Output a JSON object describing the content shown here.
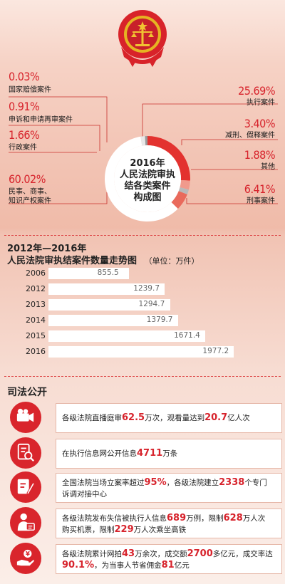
{
  "chart_data": [
    {
      "type": "pie",
      "title": "2016年人民法院审执结各类案件构成图",
      "title_lines": [
        "2016年",
        "人民法院审执",
        "结各类案件",
        "构成图"
      ],
      "slices": [
        {
          "label": "民事、商事、知识产权案件",
          "label_lines": [
            "民事、商事、",
            "知识产权案件"
          ],
          "value_label": "60.02%",
          "value": 60.02,
          "color": "#ffffff"
        },
        {
          "label": "执行案件",
          "label_lines": [
            "执行案件"
          ],
          "value_label": "25.69%",
          "value": 25.69,
          "color": "#e3322f"
        },
        {
          "label": "刑事案件",
          "label_lines": [
            "刑事案件"
          ],
          "value_label": "6.41%",
          "value": 6.41,
          "color": "#e96a5c"
        },
        {
          "label": "减刑、假释案件",
          "label_lines": [
            "减刑、假释案件"
          ],
          "value_label": "3.40%",
          "value": 3.4,
          "color": "#f09a8c"
        },
        {
          "label": "其他",
          "label_lines": [
            "其他"
          ],
          "value_label": "1.88%",
          "value": 1.88,
          "color": "#b9b9b9"
        },
        {
          "label": "行政案件",
          "label_lines": [
            "行政案件"
          ],
          "value_label": "1.66%",
          "value": 1.66,
          "color": "#e8e8e8"
        },
        {
          "label": "申诉和申请再审案件",
          "label_lines": [
            "申诉和申请再审案件"
          ],
          "value_label": "0.91%",
          "value": 0.91,
          "color": "#9a9a9a"
        },
        {
          "label": "国家赔偿案件",
          "label_lines": [
            "国家赔偿案件"
          ],
          "value_label": "0.03%",
          "value": 0.03,
          "color": "#777777"
        }
      ]
    },
    {
      "type": "bar",
      "orientation": "horizontal",
      "title_line1": "2012年—2016年",
      "title_line2": "人民法院审执结案件数量走势图",
      "unit": "（单位：万件）",
      "categories": [
        "2006",
        "2012",
        "2013",
        "2014",
        "2015",
        "2016"
      ],
      "values": [
        855.5,
        1239.7,
        1294.7,
        1379.7,
        1671.4,
        1977.2
      ],
      "value_labels": [
        "855.5",
        "1239.7",
        "1294.7",
        "1379.7",
        "1671.4",
        "1977.2"
      ],
      "xlim": [
        0,
        2050
      ],
      "bar_color": "#ffffff"
    }
  ],
  "section": {
    "title": "司法公开"
  },
  "items": [
    {
      "icon": "video-camera-icon",
      "lines": [
        [
          {
            "t": "各级法院直播庭审"
          },
          {
            "t": "62.5",
            "h": true
          },
          {
            "t": "万次，观看量达到"
          },
          {
            "t": "20.7",
            "h": true
          },
          {
            "t": "亿人次"
          }
        ]
      ]
    },
    {
      "icon": "document-search-icon",
      "lines": [
        [
          {
            "t": "在执行信息网公开信息"
          },
          {
            "t": "4711",
            "h": true
          },
          {
            "t": "万条"
          }
        ]
      ]
    },
    {
      "icon": "pen-document-icon",
      "lines": [
        [
          {
            "t": "全国法院当场立案率超过"
          },
          {
            "t": "95%",
            "h": true
          },
          {
            "t": "，各级法院建立"
          },
          {
            "t": "2338",
            "h": true
          },
          {
            "t": "个专门"
          }
        ],
        [
          {
            "t": "诉调对接中心"
          }
        ]
      ]
    },
    {
      "icon": "person-id-icon",
      "lines": [
        [
          {
            "t": "各级法院发布失信被执行人信息"
          },
          {
            "t": "689",
            "h": true
          },
          {
            "t": "万例，限制"
          },
          {
            "t": "628",
            "h": true
          },
          {
            "t": "万人次"
          }
        ],
        [
          {
            "t": "购买机票，限制"
          },
          {
            "t": "229",
            "h": true
          },
          {
            "t": "万人次乘坐高铁"
          }
        ]
      ]
    },
    {
      "icon": "hand-money-icon",
      "lines": [
        [
          {
            "t": "各级法院累计网拍"
          },
          {
            "t": "43",
            "h": true
          },
          {
            "t": "万余次，成交额"
          },
          {
            "t": "2700",
            "h": true
          },
          {
            "t": "多亿元，成交率达"
          }
        ],
        [
          {
            "t": "90.1%",
            "h": true
          },
          {
            "t": "，为当事人节省佣金"
          },
          {
            "t": "81",
            "h": true
          },
          {
            "t": "亿元"
          }
        ]
      ]
    }
  ]
}
